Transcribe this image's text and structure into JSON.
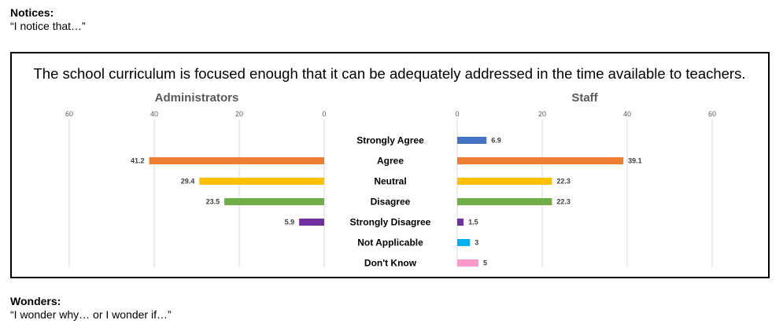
{
  "notices": {
    "heading": "Notices:",
    "prompt": "“I notice that…”"
  },
  "wonders": {
    "heading": "Wonders:",
    "prompt": "“I wonder why… or I wonder if…”"
  },
  "chart_data": {
    "type": "bar",
    "orientation": "horizontal",
    "title": "The school curriculum is focused enough that it can be adequately addressed in the time available to teachers.",
    "categories": [
      "Strongly Agree",
      "Agree",
      "Neutral",
      "Disagree",
      "Strongly Disagree",
      "Not Applicable",
      "Don't Know"
    ],
    "colors": [
      "#4472c4",
      "#ed7d31",
      "#ffc000",
      "#70ad47",
      "#7030a0",
      "#00b0f0",
      "#ff99cc"
    ],
    "xlim": [
      0,
      60
    ],
    "ticks": [
      60,
      40,
      20,
      0
    ],
    "grid": true,
    "series": [
      {
        "name": "Administrators",
        "values": [
          null,
          41.2,
          29.4,
          23.5,
          5.9,
          null,
          null
        ]
      },
      {
        "name": "Staff",
        "values": [
          6.9,
          39.1,
          22.3,
          22.3,
          1.5,
          3,
          5
        ]
      }
    ]
  }
}
